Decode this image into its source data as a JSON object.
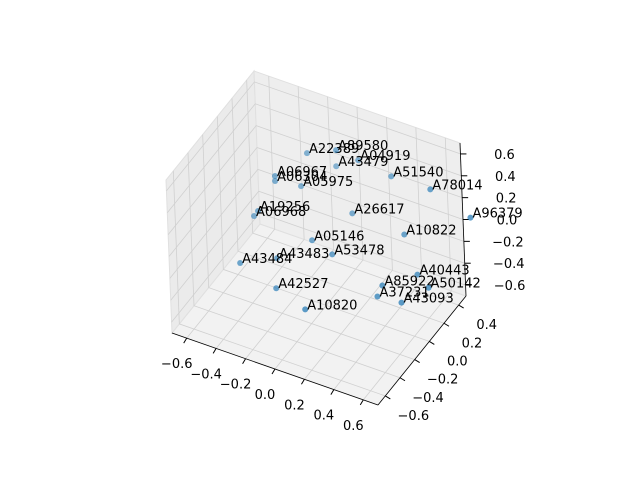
{
  "chart_data": {
    "type": "scatter3d",
    "labels": [
      "A22389",
      "A89580",
      "A04919",
      "A43479",
      "A51540",
      "A78014",
      "A96379",
      "A06967",
      "A06304",
      "A05975",
      "A19256",
      "A06968",
      "A26617",
      "A10822",
      "A05146",
      "A53478",
      "A43483",
      "A43484",
      "A42527",
      "A10820",
      "A40443",
      "A85922",
      "A50142",
      "A37231",
      "A43093"
    ],
    "x": [
      -0.215,
      -0.049,
      0.038,
      -0.102,
      0.233,
      0.496,
      0.756,
      -0.336,
      -0.338,
      -0.252,
      -0.423,
      -0.447,
      0.038,
      0.355,
      -0.109,
      0.009,
      -0.267,
      -0.442,
      -0.241,
      -0.046,
      0.449,
      0.31,
      0.515,
      0.282,
      0.411
    ],
    "y": [
      0.232,
      0.298,
      0.417,
      0.392,
      0.47,
      0.475,
      0.492,
      0.032,
      0.035,
      0.208,
      -0.042,
      -0.051,
      0.313,
      0.38,
      0.054,
      0.086,
      -0.112,
      -0.265,
      -0.188,
      -0.19,
      0.353,
      0.154,
      0.366,
      0.137,
      0.203
    ],
    "z": [
      0.4,
      0.45,
      0.3,
      0.2,
      0.2,
      0.2,
      0.05,
      0.3,
      0.25,
      0.1,
      0.0,
      -0.05,
      -0.1,
      -0.2,
      -0.2,
      -0.3,
      -0.3,
      -0.3,
      -0.5,
      -0.6,
      -0.5,
      -0.5,
      -0.6,
      -0.6,
      -0.65
    ],
    "color": "#1f77b4",
    "xlim": [
      -0.7,
      0.7
    ],
    "ylim": [
      -0.7,
      0.5
    ],
    "zlim": [
      -0.7,
      0.7
    ],
    "xticks": [
      {
        "value": -0.6,
        "label": "−0.6"
      },
      {
        "value": -0.4,
        "label": "−0.4"
      },
      {
        "value": -0.2,
        "label": "−0.2"
      },
      {
        "value": 0,
        "label": "0.0"
      },
      0.2,
      0.4,
      0.6
    ],
    "yticks": [
      {
        "value": -0.6,
        "label": "−0.6"
      },
      {
        "value": -0.4,
        "label": "−0.4"
      },
      {
        "value": -0.2,
        "label": "−0.2"
      },
      {
        "value": 0,
        "label": "0.0"
      },
      0.2,
      0.4
    ],
    "zticks": [
      {
        "value": -0.6,
        "label": "−0.6"
      },
      {
        "value": -0.4,
        "label": "−0.4"
      },
      {
        "value": -0.2,
        "label": "−0.2"
      },
      {
        "value": 0,
        "label": "0.0"
      },
      0.2,
      0.4,
      0.6
    ],
    "grid": true
  }
}
